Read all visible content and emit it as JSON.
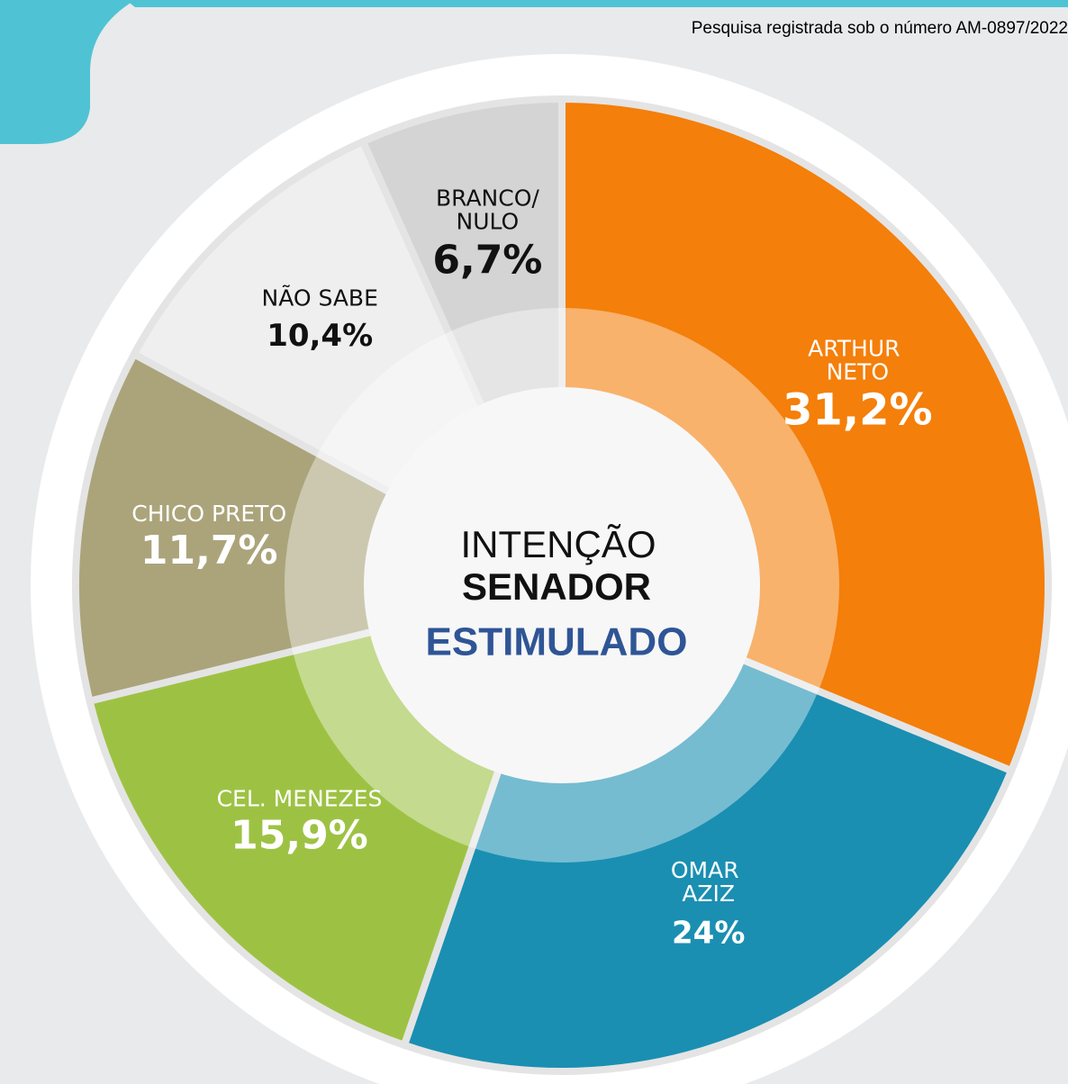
{
  "chart_data": {
    "type": "donut",
    "note": "Pesquisa registrada sob o número AM-0897/2022",
    "center_title": [
      "INTENÇÃO",
      "SENADOR",
      "ESTIMULADO"
    ],
    "categories": [
      "ARTHUR NETO",
      "OMAR AZIZ",
      "CEL. MENEZES",
      "CHICO PRETO",
      "NÃO SABE",
      "BRANCO/NULO"
    ],
    "values": [
      31.2,
      24,
      15.9,
      11.7,
      10.4,
      6.7
    ],
    "value_labels": [
      "31,2%",
      "24%",
      "15,9%",
      "11,7%",
      "10,4%",
      "6,7%"
    ],
    "colors": [
      "#f47f0a",
      "#1a8fb2",
      "#9dc243",
      "#aba47b",
      "#efefef",
      "#d4d4d4"
    ]
  }
}
